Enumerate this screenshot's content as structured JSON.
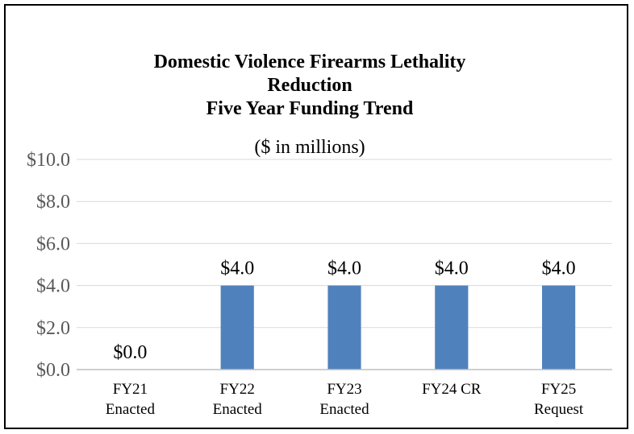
{
  "chart_data": {
    "type": "bar",
    "title_lines": [
      "Domestic Violence Firearms Lethality",
      "Reduction",
      "Five Year Funding Trend"
    ],
    "subtitle": "($ in millions)",
    "categories": [
      [
        "FY21",
        "Enacted"
      ],
      [
        "FY22",
        "Enacted"
      ],
      [
        "FY23",
        "Enacted"
      ],
      [
        "FY24 CR"
      ],
      [
        "FY25",
        "Request"
      ]
    ],
    "values": [
      0.0,
      4.0,
      4.0,
      4.0,
      4.0
    ],
    "data_labels": [
      "$0.0",
      "$4.0",
      "$4.0",
      "$4.0",
      "$4.0"
    ],
    "yticks": [
      0,
      2,
      4,
      6,
      8,
      10
    ],
    "ytick_labels": [
      "$0.0",
      "$2.0",
      "$4.0",
      "$6.0",
      "$8.0",
      "$10.0"
    ],
    "ylim": [
      0,
      10
    ],
    "xlabel": "",
    "ylabel": "",
    "grid": true,
    "legend": "none",
    "colors": {
      "bar": "#4f81bd",
      "grid": "#d9d9d9",
      "axis": "#bfbfbf",
      "tick_text": "#595959"
    }
  }
}
